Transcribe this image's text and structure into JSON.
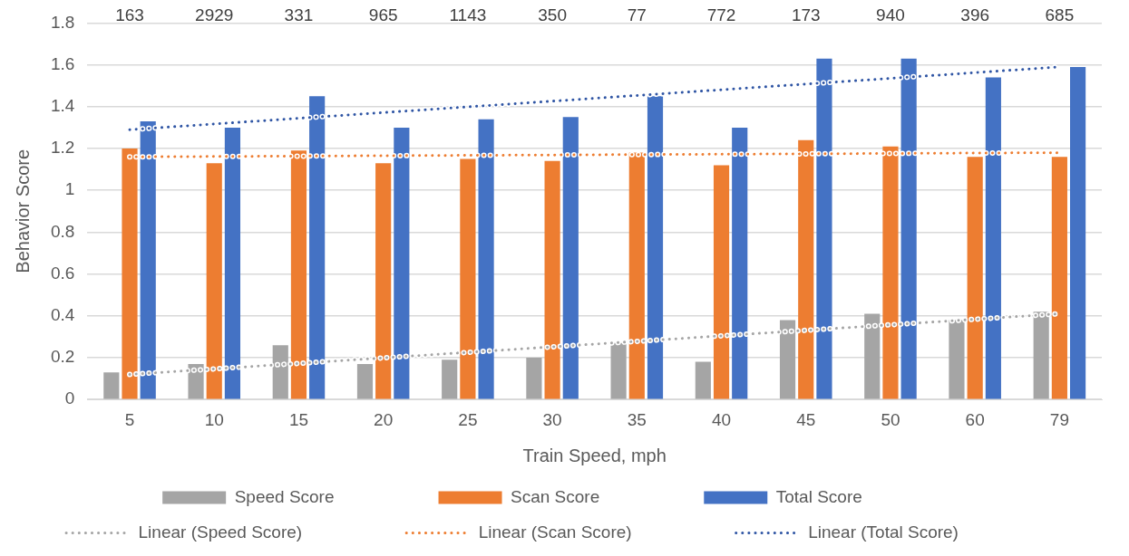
{
  "chart_data": {
    "type": "bar",
    "xlabel": "Train Speed, mph",
    "ylabel": "Behavior Score",
    "categories": [
      "5",
      "10",
      "15",
      "20",
      "25",
      "30",
      "35",
      "40",
      "45",
      "50",
      "60",
      "79"
    ],
    "series": [
      {
        "name": "Speed Score",
        "color": "#a5a5a5",
        "values": [
          0.13,
          0.17,
          0.26,
          0.17,
          0.19,
          0.2,
          0.27,
          0.18,
          0.38,
          0.41,
          0.38,
          0.42
        ]
      },
      {
        "name": "Scan Score",
        "color": "#ed7d31",
        "values": [
          1.2,
          1.13,
          1.19,
          1.13,
          1.15,
          1.14,
          1.18,
          1.12,
          1.24,
          1.21,
          1.16,
          1.16
        ]
      },
      {
        "name": "Total Score",
        "color": "#4472c4",
        "values": [
          1.33,
          1.3,
          1.45,
          1.3,
          1.34,
          1.35,
          1.45,
          1.3,
          1.63,
          1.63,
          1.54,
          1.59
        ]
      },
      {
        "name": "Linear (Speed Score)",
        "type": "line",
        "color": "#a5a5a5",
        "line_style": "dotted",
        "x": [
          "5",
          "79"
        ],
        "values": [
          0.12,
          0.41
        ]
      },
      {
        "name": "Linear (Scan Score)",
        "type": "line",
        "color": "#ed7d31",
        "line_style": "dotted",
        "x": [
          "5",
          "79"
        ],
        "values": [
          1.16,
          1.18
        ]
      },
      {
        "name": "Linear (Total Score)",
        "type": "line",
        "color": "#2f55a4",
        "line_style": "dotted",
        "x": [
          "5",
          "79"
        ],
        "values": [
          1.29,
          1.59
        ]
      }
    ],
    "ylim": [
      0,
      1.8
    ],
    "yticks": [
      0,
      0.2,
      0.4,
      0.6,
      0.8,
      1,
      1.2,
      1.4,
      1.6,
      1.8
    ],
    "grid": "y",
    "legend": "bottom",
    "marker": "none",
    "annotations": [
      "163",
      "2929",
      "331",
      "965",
      "1143",
      "350",
      "77",
      "772",
      "173",
      "940",
      "396",
      "685"
    ]
  }
}
